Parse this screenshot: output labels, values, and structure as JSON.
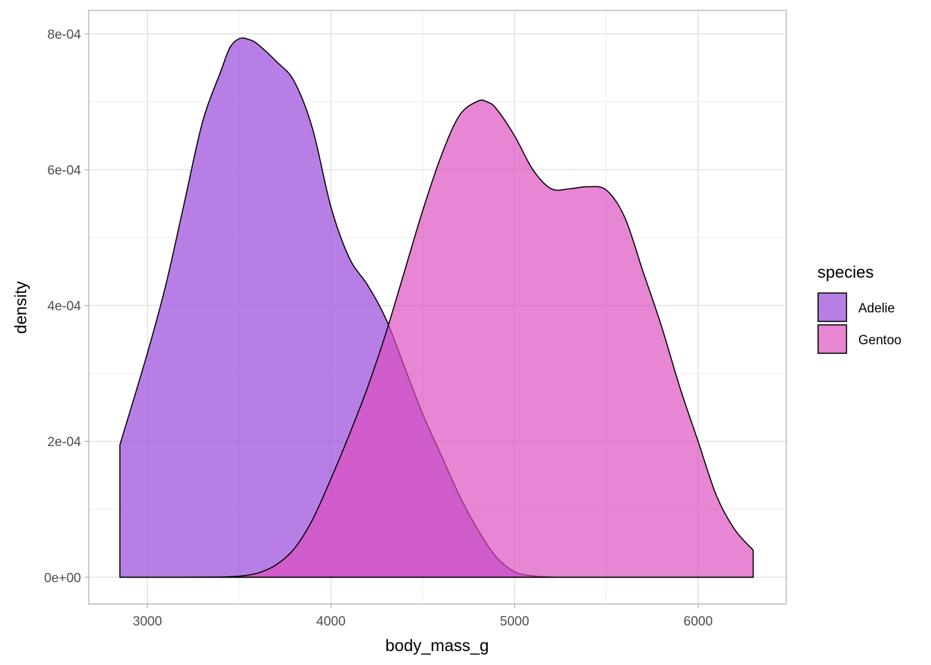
{
  "chart_data": {
    "type": "area",
    "subtype": "density",
    "xlabel": "body_mass_g",
    "ylabel": "density",
    "xlim": [
      2680,
      6480
    ],
    "ylim": [
      -3.95e-05,
      0.0008346
    ],
    "x_ticks": [
      3000,
      4000,
      5000,
      6000
    ],
    "x_tick_labels": [
      "3000",
      "4000",
      "5000",
      "6000"
    ],
    "y_ticks": [
      0,
      0.0002,
      0.0004,
      0.0006,
      0.0008
    ],
    "y_tick_labels": [
      "0e+00",
      "2e-04",
      "4e-04",
      "6e-04",
      "8e-04"
    ],
    "grid": true,
    "legend": {
      "title": "species",
      "position": "right"
    },
    "series": [
      {
        "name": "Adelie",
        "fill": "#9B4DDB",
        "fill_opacity": 0.72,
        "x": [
          2850,
          3000,
          3100,
          3200,
          3300,
          3400,
          3450,
          3500,
          3550,
          3600,
          3700,
          3800,
          3900,
          4000,
          4100,
          4200,
          4300,
          4400,
          4500,
          4600,
          4700,
          4800,
          4900,
          5000,
          5100,
          5200,
          5300,
          5500,
          5700,
          6000,
          6300
        ],
        "y": [
          0.000195,
          0.00033,
          0.00043,
          0.00055,
          0.00067,
          0.000745,
          0.00078,
          0.000793,
          0.000792,
          0.000785,
          0.00076,
          0.00073,
          0.00066,
          0.000545,
          0.00047,
          0.00043,
          0.00038,
          0.00031,
          0.00024,
          0.00018,
          0.00012,
          7e-05,
          3e-05,
          8e-06,
          2e-06,
          3e-07,
          0,
          0,
          0,
          0,
          0
        ]
      },
      {
        "name": "Gentoo",
        "fill": "#DB4DBE",
        "fill_opacity": 0.68,
        "x": [
          2850,
          3000,
          3200,
          3400,
          3500,
          3600,
          3700,
          3800,
          3900,
          4000,
          4100,
          4200,
          4300,
          4400,
          4500,
          4600,
          4700,
          4800,
          4850,
          4900,
          5000,
          5100,
          5200,
          5300,
          5400,
          5500,
          5600,
          5700,
          5800,
          5900,
          6000,
          6100,
          6200,
          6300
        ],
        "y": [
          0,
          0,
          0,
          3e-07,
          1.5e-06,
          6e-06,
          1.8e-05,
          4.2e-05,
          8.5e-05,
          0.000145,
          0.00021,
          0.00028,
          0.00036,
          0.00045,
          0.00054,
          0.00062,
          0.00068,
          0.000701,
          0.0007,
          0.00069,
          0.00065,
          0.0006,
          0.000572,
          0.000572,
          0.000575,
          0.00057,
          0.00053,
          0.00045,
          0.00037,
          0.00028,
          0.0002,
          0.00012,
          7e-05,
          4e-05
        ]
      }
    ]
  }
}
